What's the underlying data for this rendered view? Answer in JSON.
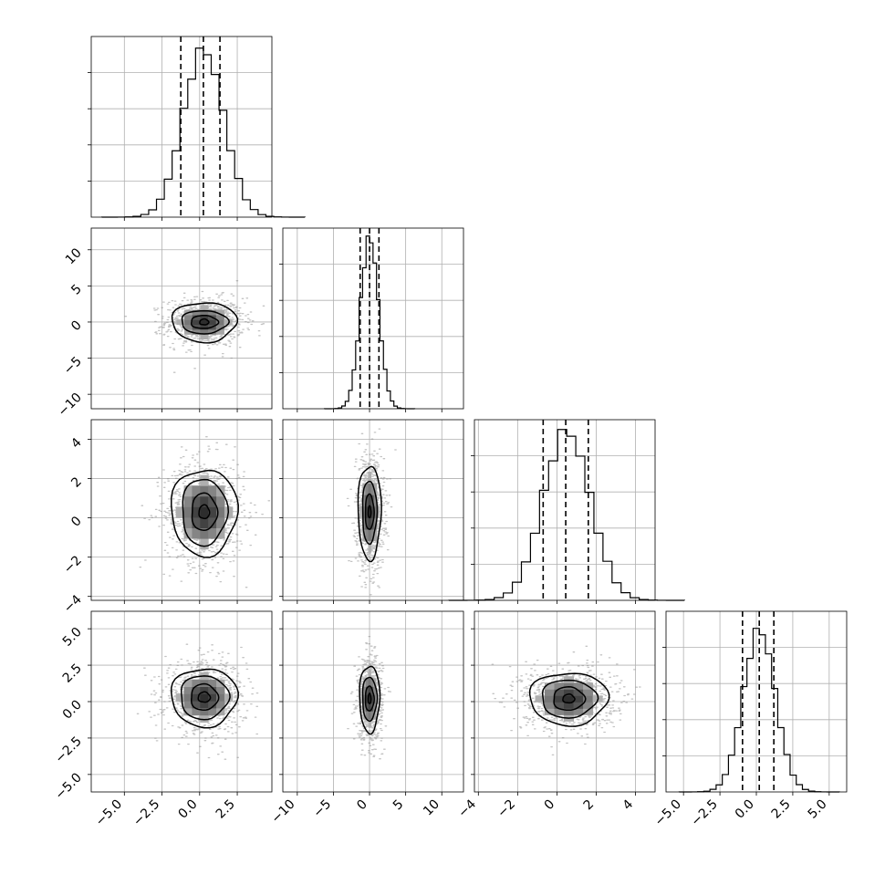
{
  "chart_data": {
    "type": "corner",
    "grid": true,
    "parameters": [
      {
        "range": [
          -7.2,
          4.8
        ],
        "ticks": [
          -5.0,
          -2.5,
          0.0,
          2.5
        ],
        "tick_labels": [
          "−5.0",
          "−2.5",
          "0.0",
          "2.5"
        ]
      },
      {
        "range": [
          -12.0,
          13.0
        ],
        "ticks": [
          -10,
          -5,
          0,
          5,
          10
        ],
        "tick_labels": [
          "−10",
          "−5",
          "0",
          "5",
          "10"
        ]
      },
      {
        "range": [
          -4.2,
          5.0
        ],
        "ticks": [
          -4,
          -2,
          0,
          2,
          4
        ],
        "tick_labels": [
          "−4",
          "−2",
          "0",
          "2",
          "4"
        ]
      },
      {
        "range": [
          -6.2,
          6.2
        ],
        "ticks": [
          -5.0,
          -2.5,
          0.0,
          2.5,
          5.0
        ],
        "tick_labels": [
          "−5.0",
          "−2.5",
          "0.0",
          "2.5",
          "5.0"
        ]
      }
    ],
    "histograms": [
      {
        "param": 0,
        "means": 0.25,
        "std": 1.35,
        "peak": 0.93,
        "quantiles": [
          -1.25,
          0.25,
          1.35
        ]
      },
      {
        "param": 1,
        "means": 0.0,
        "std": 1.25,
        "peak": 0.95,
        "quantiles": [
          -1.3,
          0.0,
          1.3
        ]
      },
      {
        "param": 2,
        "means": 0.5,
        "std": 1.2,
        "peak": 0.94,
        "quantiles": [
          -0.7,
          0.45,
          1.6
        ]
      },
      {
        "param": 3,
        "means": 0.2,
        "std": 1.1,
        "peak": 0.9,
        "quantiles": [
          -0.95,
          0.2,
          1.2
        ]
      }
    ],
    "pairs": [
      {
        "x": 0,
        "y": 1,
        "center": [
          0.3,
          0.0
        ],
        "contours": [
          [
            2.15,
            2.75
          ],
          [
            1.55,
            1.6
          ],
          [
            0.9,
            0.9
          ],
          [
            0.3,
            0.4
          ]
        ]
      },
      {
        "x": 0,
        "y": 2,
        "center": [
          0.3,
          0.3
        ],
        "contours": [
          [
            2.2,
            2.2
          ],
          [
            1.5,
            1.7
          ],
          [
            0.85,
            0.95
          ],
          [
            0.35,
            0.35
          ]
        ]
      },
      {
        "x": 1,
        "y": 2,
        "center": [
          0.0,
          0.3
        ],
        "contours": [
          [
            1.6,
            2.4
          ],
          [
            1.0,
            1.6
          ],
          [
            0.6,
            0.9
          ],
          [
            0.2,
            0.3
          ]
        ]
      },
      {
        "x": 0,
        "y": 3,
        "center": [
          0.3,
          0.3
        ],
        "contours": [
          [
            2.2,
            2.0
          ],
          [
            1.6,
            1.5
          ],
          [
            0.9,
            0.9
          ],
          [
            0.4,
            0.35
          ]
        ]
      },
      {
        "x": 1,
        "y": 3,
        "center": [
          0.0,
          0.2
        ],
        "contours": [
          [
            1.4,
            2.3
          ],
          [
            1.0,
            1.5
          ],
          [
            0.6,
            0.85
          ],
          [
            0.2,
            0.35
          ]
        ]
      },
      {
        "x": 2,
        "y": 3,
        "center": [
          0.6,
          0.2
        ],
        "contours": [
          [
            2.0,
            1.8
          ],
          [
            1.4,
            1.3
          ],
          [
            0.8,
            0.8
          ],
          [
            0.3,
            0.3
          ]
        ]
      }
    ]
  }
}
